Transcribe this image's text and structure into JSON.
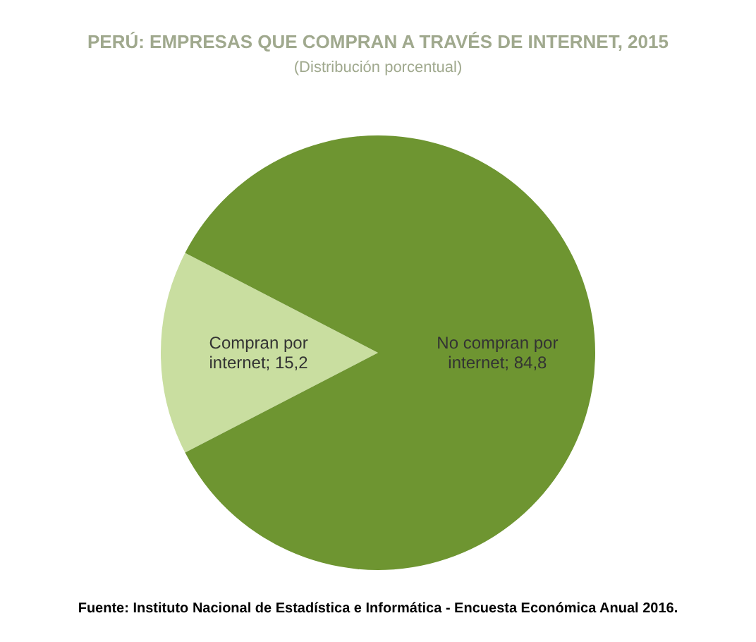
{
  "chart_data": {
    "type": "pie",
    "title": "PERÚ: EMPRESAS QUE COMPRAN A TRAVÉS DE INTERNET, 2015",
    "subtitle": "(Distribución porcentual)",
    "categories": [
      "Compran por internet",
      "No compran por internet"
    ],
    "values": [
      15.2,
      84.8
    ],
    "value_labels": [
      "15,2",
      "84,8"
    ],
    "colors": [
      "#c9dea0",
      "#6e9531"
    ],
    "legend": false,
    "annotations": [
      "Fuente: Instituto Nacional de Estadística e Informática - Encuesta Económica Anual 2016."
    ]
  }
}
